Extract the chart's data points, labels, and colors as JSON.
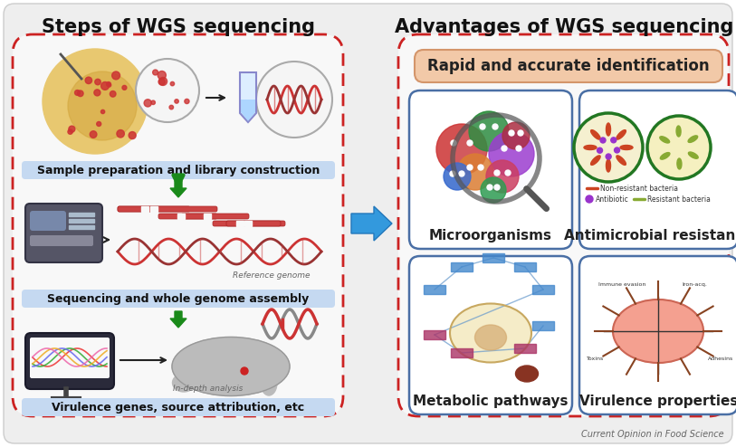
{
  "bg_color": "#f0f0f0",
  "outer_bg": "#ffffff",
  "title_left": "Steps of WGS sequencing",
  "title_right": "Advantages of WGS sequencing",
  "box_dash_color": "#cc2222",
  "left_label1": "Sample preparation and library construction",
  "left_label2": "Sequencing and whole genome assembly",
  "left_label3": "Virulence genes, source attribution, etc",
  "left_label_bg": "#c5d9f1",
  "step_arrow_color": "#1a8a1a",
  "big_arrow_color": "#3399dd",
  "banner_text": "Rapid and accurate identification",
  "banner_bg": "#f2c9a8",
  "banner_border": "#d4956a",
  "sub_label1": "Microorganisms",
  "sub_label2": "Antimicrobial resistance",
  "sub_label3": "Metabolic pathways",
  "sub_label4": "Virulence properties",
  "sub_box_border": "#4a6fa5",
  "sub_box_bg": "#ffffff",
  "caption": "Current Opinion in Food Science",
  "caption_color": "#666666",
  "ref_label": "In-depth analysis",
  "ref_genome_label": "Reference genome",
  "title_fontsize": 15,
  "label_fontsize": 9,
  "sub_label_fontsize": 11,
  "banner_fontsize": 12
}
